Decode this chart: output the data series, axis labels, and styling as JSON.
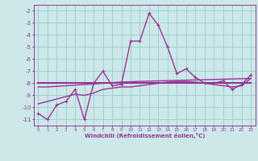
{
  "x": [
    0,
    1,
    2,
    3,
    4,
    5,
    6,
    7,
    8,
    9,
    10,
    11,
    12,
    13,
    14,
    15,
    16,
    17,
    18,
    19,
    20,
    21,
    22,
    23
  ],
  "y_main": [
    -10.5,
    -11.0,
    -9.8,
    -9.5,
    -8.5,
    -11.0,
    -8.0,
    -7.0,
    -8.2,
    -8.1,
    -4.5,
    -4.5,
    -2.2,
    -3.2,
    -5.0,
    -7.2,
    -6.8,
    -7.5,
    -8.0,
    -8.0,
    -7.8,
    -8.5,
    -8.1,
    -7.3
  ],
  "y_trend1": [
    -8.0,
    -8.0,
    -8.0,
    -8.0,
    -8.0,
    -8.0,
    -8.0,
    -8.0,
    -8.0,
    -8.0,
    -8.0,
    -8.0,
    -8.0,
    -8.0,
    -8.0,
    -8.0,
    -8.0,
    -8.0,
    -8.0,
    -8.0,
    -8.0,
    -8.0,
    -8.0,
    -8.0
  ],
  "y_trend2": [
    -8.3,
    -8.3,
    -8.25,
    -8.2,
    -8.15,
    -8.1,
    -8.05,
    -8.0,
    -7.95,
    -7.9,
    -7.87,
    -7.84,
    -7.82,
    -7.8,
    -7.78,
    -7.76,
    -7.74,
    -7.72,
    -7.7,
    -7.68,
    -7.66,
    -7.64,
    -7.62,
    -7.6
  ],
  "y_trend3": [
    -9.7,
    -9.5,
    -9.3,
    -9.1,
    -8.9,
    -9.0,
    -8.8,
    -8.5,
    -8.4,
    -8.3,
    -8.3,
    -8.2,
    -8.1,
    -8.0,
    -7.9,
    -7.85,
    -7.85,
    -7.9,
    -8.0,
    -8.1,
    -8.2,
    -8.3,
    -8.2,
    -7.6
  ],
  "line_color": "#993399",
  "bg_color": "#cce8e8",
  "grid_color": "#99cccc",
  "text_color": "#993399",
  "xlabel": "Windchill (Refroidissement éolien,°C)",
  "ylim": [
    -11.5,
    -1.5
  ],
  "xlim": [
    -0.5,
    23.5
  ],
  "yticks": [
    -11,
    -10,
    -9,
    -8,
    -7,
    -6,
    -5,
    -4,
    -3,
    -2
  ],
  "xticks": [
    0,
    1,
    2,
    3,
    4,
    5,
    6,
    7,
    8,
    9,
    10,
    11,
    12,
    13,
    14,
    15,
    16,
    17,
    18,
    19,
    20,
    21,
    22,
    23
  ],
  "figsize": [
    3.2,
    2.0
  ],
  "dpi": 100
}
